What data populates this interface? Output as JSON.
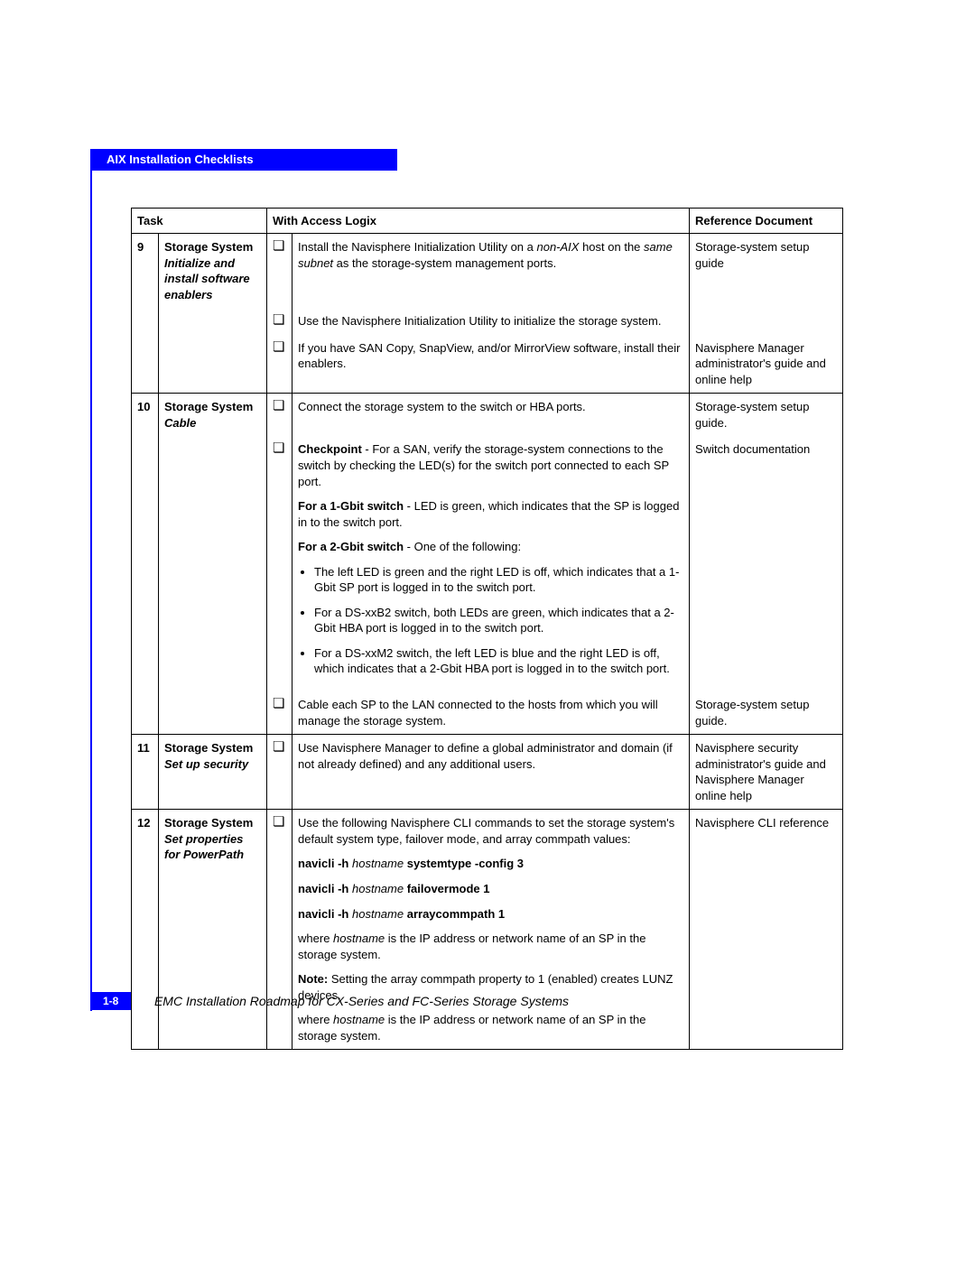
{
  "header": {
    "tab": "AIX Installation Checklists"
  },
  "columns": {
    "task": "Task",
    "with_access": "With Access Logix",
    "reference": "Reference Document"
  },
  "checkbox_glyph": "❏",
  "rows": {
    "r9": {
      "num": "9",
      "title": "Storage System",
      "sub": "Initialize and install software enablers",
      "items": [
        {
          "html": "Install the Navisphere Initialization Utility on a <i>non-AIX</i> host on the <i>same subnet</i> as the storage-system management ports.",
          "ref": "Storage-system setup guide"
        },
        {
          "html": "Use the Navisphere Initialization Utility to initialize the storage system.",
          "ref": ""
        },
        {
          "html": "If you have SAN Copy, SnapView, and/or MirrorView software, install their enablers.",
          "ref": "Navisphere Manager administrator's guide and online help"
        }
      ]
    },
    "r10": {
      "num": "10",
      "title": "Storage System",
      "sub": "Cable",
      "item1": {
        "html": "Connect the storage system to the switch or HBA ports.",
        "ref": "Storage-system setup guide."
      },
      "item2": {
        "lead_html": "<b>Checkpoint</b> - For a SAN, verify the storage-system connections to the switch by checking the LED(s) for the switch port connected to each SP port.",
        "p1_html": "<b>For a 1-Gbit switch</b> - LED is green, which indicates that the SP is logged in to the switch port.",
        "p2_html": "<b>For a 2-Gbit switch</b> - One of the following:",
        "bullets": [
          "The left LED is green and the right LED is off, which indicates that a 1-Gbit SP port is logged in to the switch port.",
          "For a DS-xxB2 switch, both LEDs are green, which indicates that a 2-Gbit HBA port is logged in to the switch port.",
          "For a DS-xxM2 switch, the left LED is blue and the right LED is off, which indicates that a 2-Gbit HBA port is logged in to the switch port."
        ],
        "ref": "Switch documentation"
      },
      "item3": {
        "html": "Cable each SP to the LAN connected to the hosts from which you will manage the storage system.",
        "ref": "Storage-system setup guide."
      }
    },
    "r11": {
      "num": "11",
      "title": "Storage System",
      "sub": "Set up security",
      "item": {
        "html": "Use Navisphere Manager to define a global administrator and domain (if not already defined) and any additional users.",
        "ref": "Navisphere security administrator's guide and Navisphere Manager online help"
      }
    },
    "r12": {
      "num": "12",
      "title": "Storage System",
      "sub": "Set properties for PowerPath",
      "item": {
        "lead_html": "Use the following Navisphere CLI commands to set the storage system's default system type, failover mode, and array commpath values:",
        "cmd1_html": "<b>navicli -h</b> <i>hostname</i> <b>systemtype -config 3</b>",
        "cmd2_html": "<b>navicli -h</b> <i>hostname</i> <b>failovermode 1</b>",
        "cmd3_html": "<b>navicli -h</b> <i>hostname</i> <b>arraycommpath 1</b>",
        "p1_html": "where <i>hostname</i> is the IP address or network name of an SP in the storage system.",
        "p2_html": "<b>Note:</b> Setting the array commpath property to 1 (enabled) creates LUNZ devices.",
        "p3_html": "where <i>hostname</i> is the IP address or network name of an SP in the storage system.",
        "ref": "Navisphere CLI reference"
      }
    }
  },
  "footer": {
    "page": "1-8",
    "title": "EMC Installation Roadmap for CX-Series and FC-Series Storage Systems"
  }
}
